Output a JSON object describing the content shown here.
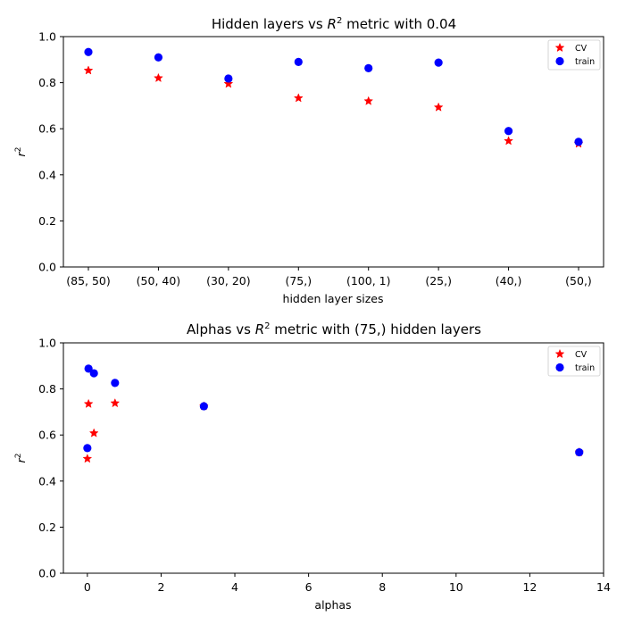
{
  "chart_data": [
    {
      "type": "scatter",
      "title_main": "Hidden layers vs ",
      "title_sym": "R",
      "title_sup": "2",
      "title_tail": " metric with 0.04",
      "xlabel": "hidden layer sizes",
      "ylabel_sym": "r",
      "ylabel_sup": "2",
      "categories": [
        "(85, 50)",
        "(50, 40)",
        "(30, 20)",
        "(75,)",
        "(100, 1)",
        "(25,)",
        "(40,)",
        "(50,)"
      ],
      "ylim": [
        0.0,
        1.0
      ],
      "yticks": [
        "0.0",
        "0.2",
        "0.4",
        "0.6",
        "0.8",
        "1.0"
      ],
      "legend_position": "top-right",
      "series": [
        {
          "name": "CV",
          "marker": "star",
          "color": "#ff0000",
          "values": [
            0.853,
            0.82,
            0.795,
            0.733,
            0.72,
            0.693,
            0.547,
            0.535
          ]
        },
        {
          "name": "train",
          "marker": "circle",
          "color": "#0000ff",
          "values": [
            0.933,
            0.91,
            0.818,
            0.89,
            0.863,
            0.887,
            0.59,
            0.543
          ]
        }
      ]
    },
    {
      "type": "scatter",
      "title_main": "Alphas vs ",
      "title_sym": "R",
      "title_sup": "2",
      "title_tail": " metric with (75,) hidden layers",
      "xlabel": "alphas",
      "ylabel_sym": "r",
      "ylabel_sup": "2",
      "xlim": [
        -0.65,
        14.0
      ],
      "xticks": [
        0,
        2,
        4,
        6,
        8,
        10,
        12,
        14
      ],
      "ylim": [
        0.0,
        1.0
      ],
      "yticks": [
        "0.0",
        "0.2",
        "0.4",
        "0.6",
        "0.8",
        "1.0"
      ],
      "legend_position": "top-right",
      "series": [
        {
          "name": "CV",
          "marker": "star",
          "color": "#ff0000",
          "x": [
            0.0,
            0.0316,
            0.178,
            0.75,
            3.16,
            13.34
          ],
          "y": [
            0.497,
            0.735,
            0.608,
            0.738,
            0.725,
            0.525
          ]
        },
        {
          "name": "train",
          "marker": "circle",
          "color": "#0000ff",
          "x": [
            0.0,
            0.0316,
            0.178,
            0.75,
            3.16,
            13.34
          ],
          "y": [
            0.543,
            0.888,
            0.868,
            0.826,
            0.725,
            0.525
          ]
        }
      ]
    }
  ]
}
